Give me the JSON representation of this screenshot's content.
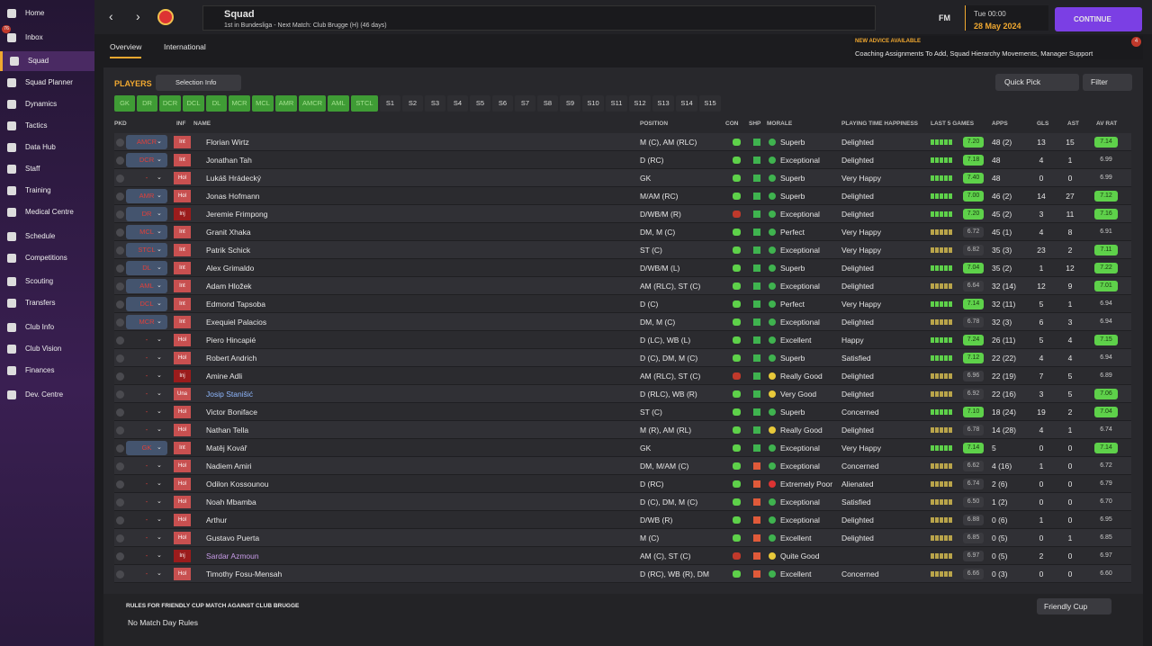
{
  "sidebar": {
    "items": [
      {
        "label": "Home"
      },
      {
        "label": "Inbox",
        "badge": "76"
      },
      {
        "label": "Squad"
      },
      {
        "label": "Squad Planner"
      },
      {
        "label": "Dynamics"
      },
      {
        "label": "Tactics"
      },
      {
        "label": "Data Hub"
      },
      {
        "label": "Staff"
      },
      {
        "label": "Training"
      },
      {
        "label": "Medical Centre"
      },
      {
        "label": "Schedule"
      },
      {
        "label": "Competitions"
      },
      {
        "label": "Scouting"
      },
      {
        "label": "Transfers"
      },
      {
        "label": "Club Info"
      },
      {
        "label": "Club Vision"
      },
      {
        "label": "Finances"
      },
      {
        "label": "Dev. Centre"
      }
    ]
  },
  "header": {
    "title": "Squad",
    "subtitle": "1st in Bundesliga - Next Match: Club Brugge (H) (46 days)",
    "fm": "FM",
    "time": "Tue 00:00",
    "date": "28 May 2024",
    "continue": "CONTINUE",
    "advice_title": "NEW ADVICE AVAILABLE",
    "advice_text": "Coaching Assignments To Add, Squad Hierarchy Movements, Manager Support",
    "advice_badge": "4"
  },
  "tabs": [
    "Overview",
    "International"
  ],
  "players": {
    "title": "PLAYERS",
    "selection_info": "Selection Info",
    "quick_pick": "Quick Pick",
    "filter": "Filter",
    "positions": [
      "GK",
      "DR",
      "DCR",
      "DCL",
      "DL",
      "MCR",
      "MCL",
      "AMR",
      "AMCR",
      "AML",
      "STCL",
      "S1",
      "S2",
      "S3",
      "S4",
      "S5",
      "S6",
      "S7",
      "S8",
      "S9",
      "S10",
      "S11",
      "S12",
      "S13",
      "S14",
      "S15"
    ],
    "columns": [
      "PKD",
      "INF",
      "NAME",
      "POSITION",
      "CON",
      "SHP",
      "MORALE",
      "PLAYING TIME HAPPINESS",
      "LAST 5 GAMES",
      "APPS",
      "GLS",
      "AST",
      "AV RAT"
    ],
    "rows": [
      {
        "pkd": "AMCR",
        "inf": "Int",
        "name": "Florian Wirtz",
        "position": "M (C), AM (RLC)",
        "morale": "Superb",
        "happiness": "Delighted",
        "form": "7.20",
        "apps": "48 (2)",
        "gls": 13,
        "ast": 15,
        "rating": "7.14"
      },
      {
        "pkd": "DCR",
        "inf": "Int",
        "name": "Jonathan Tah",
        "position": "D (RC)",
        "morale": "Exceptional",
        "happiness": "Delighted",
        "form": "7.18",
        "apps": "48",
        "gls": 4,
        "ast": 1,
        "rating": "6.99"
      },
      {
        "pkd": "-",
        "inf": "Hol",
        "name": "Lukáš Hrádecký",
        "position": "GK",
        "morale": "Superb",
        "happiness": "Very Happy",
        "form": "7.40",
        "apps": "48",
        "gls": 0,
        "ast": 0,
        "rating": "6.99"
      },
      {
        "pkd": "AMR",
        "inf": "Hol",
        "name": "Jonas Hofmann",
        "position": "M/AM (RC)",
        "morale": "Superb",
        "happiness": "Delighted",
        "form": "7.00",
        "apps": "46 (2)",
        "gls": 14,
        "ast": 27,
        "rating": "7.12"
      },
      {
        "pkd": "DR",
        "inf": "Inj",
        "name": "Jeremie Frimpong",
        "position": "D/WB/M (R)",
        "morale": "Exceptional",
        "happiness": "Delighted",
        "form": "7.20",
        "apps": "45 (2)",
        "gls": 3,
        "ast": 11,
        "rating": "7.16"
      },
      {
        "pkd": "MCL",
        "inf": "Int",
        "name": "Granit Xhaka",
        "position": "DM, M (C)",
        "morale": "Perfect",
        "happiness": "Very Happy",
        "form": "6.72",
        "apps": "45 (1)",
        "gls": 4,
        "ast": 8,
        "rating": "6.91"
      },
      {
        "pkd": "STCL",
        "inf": "Int",
        "name": "Patrik Schick",
        "position": "ST (C)",
        "morale": "Exceptional",
        "happiness": "Very Happy",
        "form": "6.82",
        "apps": "35 (3)",
        "gls": 23,
        "ast": 2,
        "rating": "7.11"
      },
      {
        "pkd": "DL",
        "inf": "Int",
        "name": "Alex Grimaldo",
        "position": "D/WB/M (L)",
        "morale": "Superb",
        "happiness": "Delighted",
        "form": "7.04",
        "apps": "35 (2)",
        "gls": 1,
        "ast": 12,
        "rating": "7.22"
      },
      {
        "pkd": "AML",
        "inf": "Int",
        "name": "Adam Hložek",
        "position": "AM (RLC), ST (C)",
        "morale": "Exceptional",
        "happiness": "Delighted",
        "form": "6.64",
        "apps": "32 (14)",
        "gls": 12,
        "ast": 9,
        "rating": "7.01"
      },
      {
        "pkd": "DCL",
        "inf": "Int",
        "name": "Edmond Tapsoba",
        "position": "D (C)",
        "morale": "Perfect",
        "happiness": "Very Happy",
        "form": "7.14",
        "apps": "32 (11)",
        "gls": 5,
        "ast": 1,
        "rating": "6.94"
      },
      {
        "pkd": "MCR",
        "inf": "Int",
        "name": "Exequiel Palacios",
        "position": "DM, M (C)",
        "morale": "Exceptional",
        "happiness": "Delighted",
        "form": "6.78",
        "apps": "32 (3)",
        "gls": 6,
        "ast": 3,
        "rating": "6.94"
      },
      {
        "pkd": "-",
        "inf": "Hol",
        "name": "Piero Hincapié",
        "position": "D (LC), WB (L)",
        "morale": "Excellent",
        "happiness": "Happy",
        "form": "7.24",
        "apps": "26 (11)",
        "gls": 5,
        "ast": 4,
        "rating": "7.15"
      },
      {
        "pkd": "-",
        "inf": "Hol",
        "name": "Robert Andrich",
        "position": "D (C), DM, M (C)",
        "morale": "Superb",
        "happiness": "Satisfied",
        "form": "7.12",
        "apps": "22 (22)",
        "gls": 4,
        "ast": 4,
        "rating": "6.94"
      },
      {
        "pkd": "-",
        "inf": "Inj",
        "name": "Amine Adli",
        "position": "AM (RLC), ST (C)",
        "morale": "Really Good",
        "happiness": "Delighted",
        "form": "6.96",
        "apps": "22 (19)",
        "gls": 7,
        "ast": 5,
        "rating": "6.89"
      },
      {
        "pkd": "-",
        "inf": "Una",
        "name": "Josip Stanišić",
        "name_color": "#8fb8ff",
        "position": "D (RLC), WB (R)",
        "morale": "Very Good",
        "happiness": "Delighted",
        "form": "6.92",
        "apps": "22 (16)",
        "gls": 3,
        "ast": 5,
        "rating": "7.06"
      },
      {
        "pkd": "-",
        "inf": "Hol",
        "name": "Victor Boniface",
        "position": "ST (C)",
        "morale": "Superb",
        "happiness": "Concerned",
        "form": "7.10",
        "apps": "18 (24)",
        "gls": 19,
        "ast": 2,
        "rating": "7.04"
      },
      {
        "pkd": "-",
        "inf": "Hol",
        "name": "Nathan Tella",
        "position": "M (R), AM (RL)",
        "morale": "Really Good",
        "happiness": "Delighted",
        "form": "6.78",
        "apps": "14 (28)",
        "gls": 4,
        "ast": 1,
        "rating": "6.74"
      },
      {
        "pkd": "GK",
        "inf": "Int",
        "name": "Matěj Kovář",
        "position": "GK",
        "morale": "Exceptional",
        "happiness": "Very Happy",
        "form": "7.14",
        "apps": "5",
        "gls": 0,
        "ast": 0,
        "rating": "7.14"
      },
      {
        "pkd": "-",
        "inf": "Hol",
        "name": "Nadiem Amiri",
        "position": "DM, M/AM (C)",
        "morale": "Exceptional",
        "happiness": "Concerned",
        "form": "6.62",
        "apps": "4 (16)",
        "gls": 1,
        "ast": 0,
        "rating": "6.72"
      },
      {
        "pkd": "-",
        "inf": "Hol",
        "name": "Odilon Kossounou",
        "position": "D (RC)",
        "morale": "Extremely Poor",
        "happiness": "Alienated",
        "form": "6.74",
        "apps": "2 (6)",
        "gls": 0,
        "ast": 0,
        "rating": "6.79"
      },
      {
        "pkd": "-",
        "inf": "Hol",
        "name": "Noah Mbamba",
        "position": "D (C), DM, M (C)",
        "morale": "Exceptional",
        "happiness": "Satisfied",
        "form": "6.50",
        "apps": "1 (2)",
        "gls": 0,
        "ast": 0,
        "rating": "6.70"
      },
      {
        "pkd": "-",
        "inf": "Hol",
        "name": "Arthur",
        "position": "D/WB (R)",
        "morale": "Exceptional",
        "happiness": "Delighted",
        "form": "6.88",
        "apps": "0 (6)",
        "gls": 1,
        "ast": 0,
        "rating": "6.95"
      },
      {
        "pkd": "-",
        "inf": "Hol",
        "name": "Gustavo Puerta",
        "position": "M (C)",
        "morale": "Excellent",
        "happiness": "Delighted",
        "form": "6.85",
        "apps": "0 (5)",
        "gls": 0,
        "ast": 1,
        "rating": "6.85"
      },
      {
        "pkd": "-",
        "inf": "Inj",
        "name": "Sardar Azmoun",
        "name_color": "#c79be8",
        "position": "AM (C), ST (C)",
        "morale": "Quite Good",
        "form": "6.97",
        "apps": "0 (5)",
        "gls": 2,
        "ast": 0,
        "rating": "6.97"
      },
      {
        "pkd": "-",
        "inf": "Hol",
        "name": "Timothy Fosu-Mensah",
        "position": "D (RC), WB (R), DM",
        "morale": "Excellent",
        "happiness": "Concerned",
        "form": "6.66",
        "apps": "0 (3)",
        "gls": 0,
        "ast": 0,
        "rating": "6.60"
      }
    ]
  },
  "footer": {
    "rules_title": "RULES FOR FRIENDLY CUP MATCH AGAINST CLUB BRUGGE",
    "rules": "No Match Day Rules",
    "competition": "Friendly Cup"
  }
}
